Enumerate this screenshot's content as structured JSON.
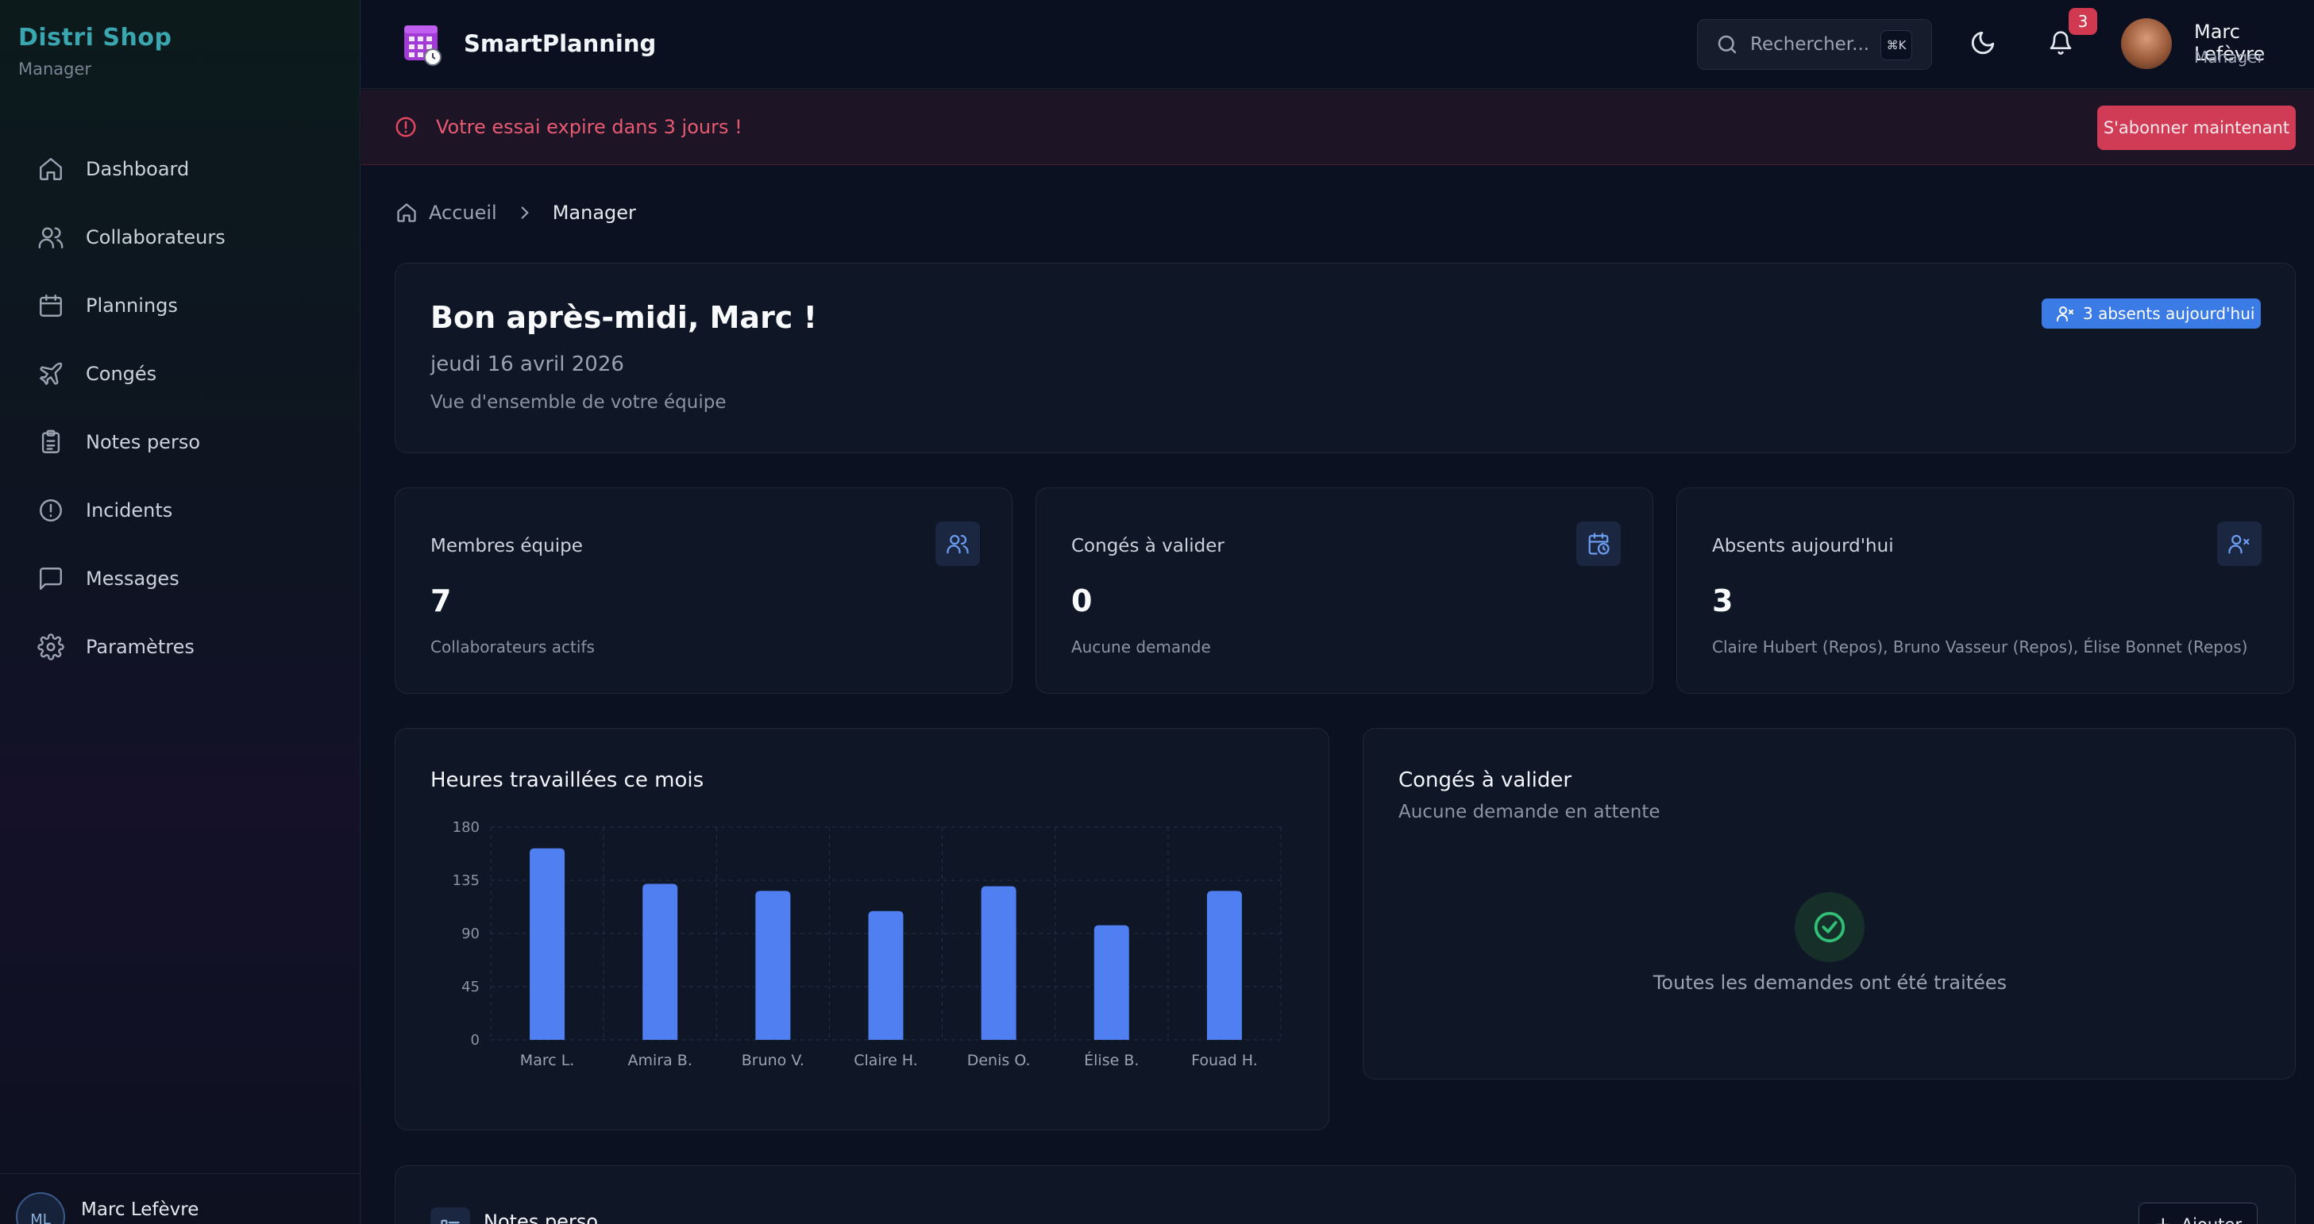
{
  "sidebar": {
    "brand": "Distri Shop",
    "role": "Manager",
    "items": [
      {
        "label": "Dashboard",
        "icon": "home-icon"
      },
      {
        "label": "Collaborateurs",
        "icon": "users-icon"
      },
      {
        "label": "Plannings",
        "icon": "calendar-icon"
      },
      {
        "label": "Congés",
        "icon": "plane-icon"
      },
      {
        "label": "Notes perso",
        "icon": "clipboard-icon"
      },
      {
        "label": "Incidents",
        "icon": "alert-circle-icon"
      },
      {
        "label": "Messages",
        "icon": "message-icon"
      },
      {
        "label": "Paramètres",
        "icon": "gear-icon"
      }
    ],
    "user": {
      "initials": "ML",
      "name": "Marc Lefèvre"
    }
  },
  "header": {
    "app_title": "SmartPlanning",
    "search_placeholder": "Rechercher...",
    "search_shortcut": "⌘K",
    "notification_count": "3",
    "user_name": "Marc Lefèvre",
    "user_role": "Manager"
  },
  "banner": {
    "text": "Votre essai expire dans 3 jours !",
    "button": "S'abonner maintenant",
    "accent": "#d03b55"
  },
  "breadcrumb": {
    "home": "Accueil",
    "current": "Manager"
  },
  "welcome": {
    "title": "Bon après-midi, Marc !",
    "date": "jeudi 16 avril 2026",
    "subtitle": "Vue d'ensemble de votre équipe",
    "badge": "3 absents aujourd'hui"
  },
  "stats": [
    {
      "label": "Membres équipe",
      "value": "7",
      "sub": "Collaborateurs actifs",
      "icon": "users-icon"
    },
    {
      "label": "Congés à valider",
      "value": "0",
      "sub": "Aucune demande",
      "icon": "calendar-clock-icon"
    },
    {
      "label": "Absents aujourd'hui",
      "value": "3",
      "sub": "Claire Hubert (Repos), Bruno Vasseur (Repos), Élise Bonnet (Repos)",
      "icon": "user-x-icon"
    }
  ],
  "chart_title": "Heures travaillées ce mois",
  "chart_data": {
    "type": "bar",
    "categories": [
      "Marc L.",
      "Amira B.",
      "Bruno V.",
      "Claire H.",
      "Denis O.",
      "Élise B.",
      "Fouad H."
    ],
    "values": [
      162,
      132,
      126,
      109,
      130,
      97,
      126
    ],
    "yticks": [
      0,
      45,
      90,
      135,
      180
    ],
    "ylim": [
      0,
      180
    ],
    "color": "#4f7ff0",
    "grid": true
  },
  "leave_panel": {
    "title": "Congés à valider",
    "subtitle": "Aucune demande en attente",
    "empty_text": "Toutes les demandes ont été traitées"
  },
  "notes_panel": {
    "title": "Notes perso",
    "add_label": "Ajouter"
  }
}
